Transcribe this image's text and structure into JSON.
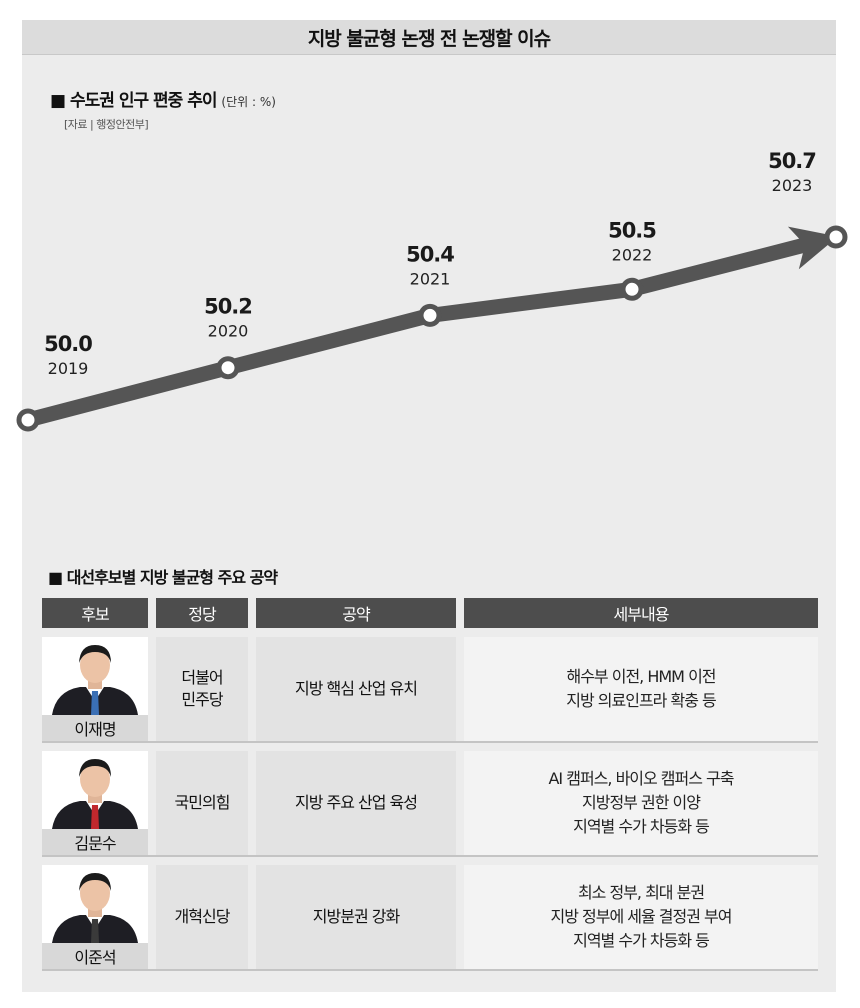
{
  "title": "지방 불균형 논쟁 전 논쟁할 이슈",
  "chart_data": {
    "type": "line",
    "title": "수도권 인구 편중 추이",
    "unit": "(단위 : %)",
    "source": "[자료 | 행정안전부]",
    "x": [
      "2019",
      "2020",
      "2021",
      "2022",
      "2023"
    ],
    "values": [
      50.0,
      50.2,
      50.4,
      50.5,
      50.7
    ],
    "labels": [
      "50.0",
      "50.2",
      "50.4",
      "50.5",
      "50.7"
    ],
    "line_color": "#555555",
    "grid": false,
    "legend": "none"
  },
  "table": {
    "title": "대선후보별 지방 불균형 주요 공약",
    "headers": [
      "후보",
      "정당",
      "공약",
      "세부내용"
    ],
    "rows": [
      {
        "name": "이재명",
        "party": "더불어\n민주당",
        "pledge": "지방 핵심 산업 유치",
        "details": "해수부 이전, HMM 이전\n지방 의료인프라 확충 등",
        "tie_color": "#3a6fb5"
      },
      {
        "name": "김문수",
        "party": "국민의힘",
        "pledge": "지방 주요 산업 육성",
        "details": "AI 캠퍼스, 바이오 캠퍼스 구축\n지방정부 권한 이양\n지역별 수가 차등화 등",
        "tie_color": "#c0282d"
      },
      {
        "name": "이준석",
        "party": "개혁신당",
        "pledge": "지방분권 강화",
        "details": "최소 정부, 최대 분권\n지방 정부에 세율 결정권 부여\n지역별 수가 차등화 등",
        "tie_color": "#3a3a3a"
      }
    ]
  }
}
